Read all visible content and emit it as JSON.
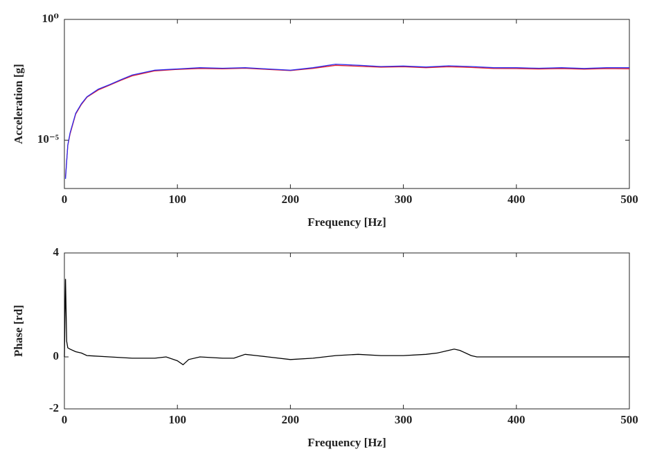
{
  "chart_data": [
    {
      "type": "line",
      "xlabel": "Frequency [Hz]",
      "ylabel": "Acceleration [g]",
      "xlim": [
        0,
        500
      ],
      "xticks": [
        0,
        100,
        200,
        300,
        400,
        500
      ],
      "ylim": [
        1e-07,
        1
      ],
      "ylog": true,
      "yticks": [
        {
          "value": 1e-05,
          "label": "10⁻⁵"
        },
        {
          "value": 1,
          "label": "10⁰"
        }
      ],
      "x": [
        1,
        3,
        5,
        10,
        15,
        20,
        30,
        40,
        50,
        60,
        80,
        100,
        120,
        140,
        160,
        180,
        200,
        220,
        240,
        260,
        280,
        300,
        320,
        340,
        360,
        380,
        400,
        420,
        440,
        460,
        480,
        500
      ],
      "series": [
        {
          "color": "#e8202a",
          "values": [
            3e-07,
            6e-06,
            1.8e-05,
            0.00012,
            0.0003,
            0.0006,
            0.0012,
            0.0019,
            0.003,
            0.0046,
            0.0074,
            0.0085,
            0.0093,
            0.009,
            0.0095,
            0.0085,
            0.0076,
            0.0094,
            0.0125,
            0.0115,
            0.0105,
            0.011,
            0.01,
            0.011,
            0.0102,
            0.0093,
            0.0092,
            0.0088,
            0.0092,
            0.0087,
            0.0092,
            0.009
          ]
        },
        {
          "color": "#2a2af0",
          "values": [
            2.5e-07,
            6.3e-06,
            2e-05,
            0.00013,
            0.00032,
            0.00063,
            0.0013,
            0.002,
            0.0032,
            0.005,
            0.0079,
            0.0089,
            0.01,
            0.0095,
            0.01,
            0.0089,
            0.0079,
            0.01,
            0.014,
            0.0126,
            0.0112,
            0.0117,
            0.0107,
            0.012,
            0.0112,
            0.01,
            0.01,
            0.0095,
            0.01,
            0.0093,
            0.01,
            0.01
          ]
        }
      ]
    },
    {
      "type": "line",
      "xlabel": "Frequency [Hz]",
      "ylabel": "Phase [rd]",
      "xlim": [
        0,
        500
      ],
      "xticks": [
        0,
        100,
        200,
        300,
        400,
        500
      ],
      "ylim": [
        -2,
        4
      ],
      "yticks": [
        -2,
        0,
        4
      ],
      "x": [
        0,
        1,
        2,
        3,
        5,
        10,
        15,
        20,
        40,
        60,
        80,
        90,
        100,
        105,
        110,
        120,
        140,
        150,
        160,
        170,
        180,
        200,
        220,
        240,
        260,
        280,
        300,
        320,
        330,
        340,
        345,
        350,
        360,
        365,
        380,
        400,
        450,
        500
      ],
      "series": [
        {
          "color": "#000000",
          "values": [
            0,
            3,
            0.6,
            0.35,
            0.3,
            0.2,
            0.15,
            0.05,
            0,
            -0.05,
            -0.05,
            0,
            -0.15,
            -0.3,
            -0.1,
            0,
            -0.05,
            -0.05,
            0.1,
            0.05,
            0,
            -0.1,
            -0.05,
            0.05,
            0.1,
            0.05,
            0.05,
            0.1,
            0.15,
            0.25,
            0.3,
            0.25,
            0.05,
            0,
            0,
            0,
            0,
            0
          ]
        }
      ]
    }
  ]
}
